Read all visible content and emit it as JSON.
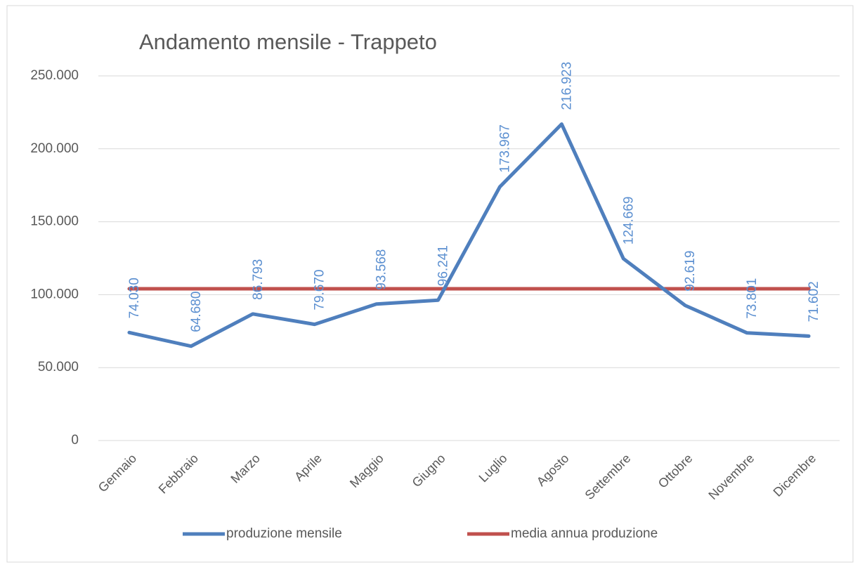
{
  "chart_data": {
    "type": "line",
    "title": "Andamento mensile - Trappeto",
    "categories": [
      "Gennaio",
      "Febbraio",
      "Marzo",
      "Aprile",
      "Maggio",
      "Giugno",
      "Luglio",
      "Agosto",
      "Settembre",
      "Ottobre",
      "Novembre",
      "Dicembre"
    ],
    "series": [
      {
        "name": "produzione mensile",
        "color": "#4f7fbd",
        "values": [
          74030,
          64680,
          86793,
          79670,
          93568,
          96241,
          173967,
          216923,
          124669,
          92619,
          73801,
          71602
        ],
        "value_labels": [
          "74.030",
          "64.680",
          "86.793",
          "79.670",
          "93.568",
          "96.241",
          "173.967",
          "216.923",
          "124.669",
          "92.619",
          "73.801",
          "71.602"
        ]
      },
      {
        "name": "media annua produzione",
        "color": "#c0504d",
        "values": [
          104047,
          104047,
          104047,
          104047,
          104047,
          104047,
          104047,
          104047,
          104047,
          104047,
          104047,
          104047
        ]
      }
    ],
    "ylim": [
      0,
      250000
    ],
    "yticks": [
      0,
      {
        "value": 50000,
        "label": "50.000"
      },
      {
        "value": 100000,
        "label": "100.000"
      },
      {
        "value": 150000,
        "label": "150.000"
      },
      {
        "value": 200000,
        "label": "200.000"
      },
      {
        "value": 250000,
        "label": "250.000"
      }
    ],
    "grid": true,
    "legend": "bottom",
    "label_color": "#5b8fd0"
  }
}
